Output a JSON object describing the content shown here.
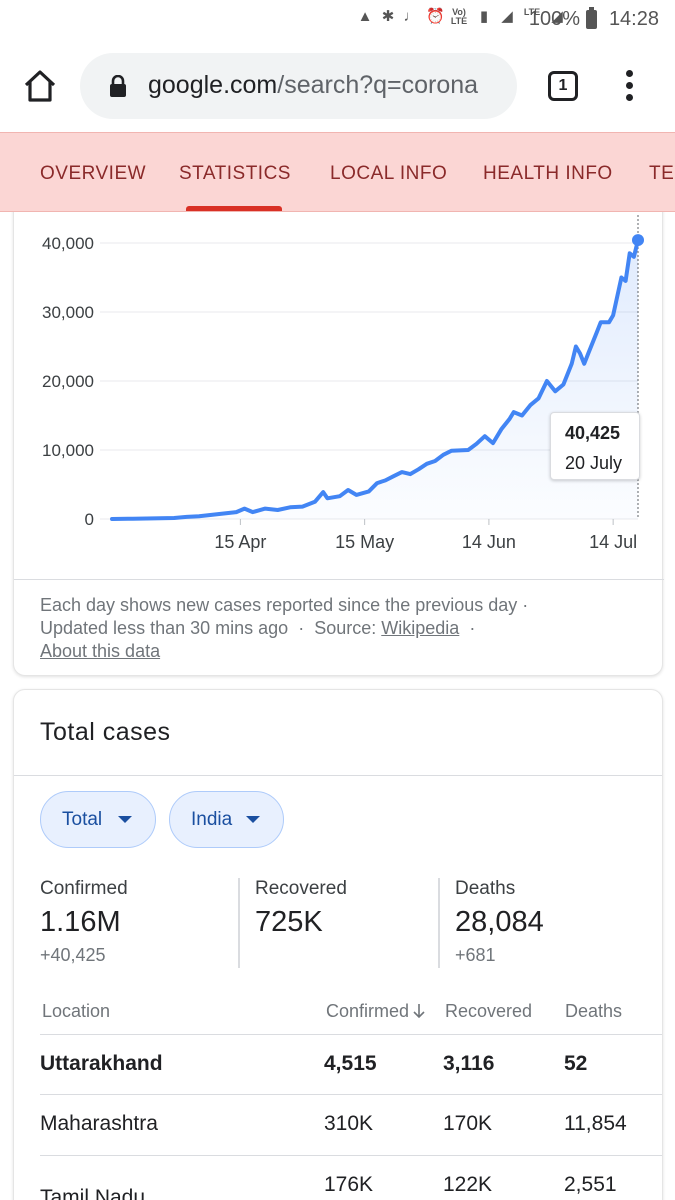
{
  "status_bar": {
    "icons": [
      "battery-saver-icon",
      "bluetooth-icon",
      "mute-icon",
      "alarm-icon",
      "volte-icon",
      "sim-icon",
      "signal-icon",
      "lte-icon",
      "signal-icon"
    ],
    "volte_label": "Vo) LTE",
    "lte_label": "LTE",
    "battery": "100%",
    "time": "14:28"
  },
  "browser": {
    "url_domain": "google.com",
    "url_rest": "/search?q=corona",
    "tab_count": "1"
  },
  "tabs": [
    {
      "label": "OVERVIEW",
      "active": false
    },
    {
      "label": "STATISTICS",
      "active": true
    },
    {
      "label": "LOCAL INFO",
      "active": false
    },
    {
      "label": "HEALTH INFO",
      "active": false
    },
    {
      "label": "TE",
      "active": false
    }
  ],
  "chart_data": {
    "type": "area",
    "title": "",
    "xlabel": "",
    "ylabel": "",
    "ylim": [
      0,
      40000
    ],
    "y_ticks": [
      {
        "value": 0,
        "label": "0"
      },
      {
        "value": 10000,
        "label": "10,000"
      },
      {
        "value": 20000,
        "label": "20,000"
      },
      {
        "value": 30000,
        "label": "30,000"
      },
      {
        "value": 40000,
        "label": "40,000"
      }
    ],
    "x_ticks": [
      {
        "date": "2020-04-15",
        "label": "15 Apr"
      },
      {
        "date": "2020-05-15",
        "label": "15 May"
      },
      {
        "date": "2020-06-14",
        "label": "14 Jun"
      },
      {
        "date": "2020-07-14",
        "label": "14 Jul"
      }
    ],
    "grid": true,
    "color": "#4285f4",
    "series": [
      {
        "values": [
          [
            "2020-03-15",
            0
          ],
          [
            "2020-03-20",
            50
          ],
          [
            "2020-03-25",
            80
          ],
          [
            "2020-03-30",
            150
          ],
          [
            "2020-04-02",
            300
          ],
          [
            "2020-04-05",
            400
          ],
          [
            "2020-04-08",
            600
          ],
          [
            "2020-04-11",
            800
          ],
          [
            "2020-04-14",
            1000
          ],
          [
            "2020-04-16",
            1500
          ],
          [
            "2020-04-18",
            1000
          ],
          [
            "2020-04-21",
            1500
          ],
          [
            "2020-04-24",
            1300
          ],
          [
            "2020-04-27",
            1700
          ],
          [
            "2020-04-30",
            1800
          ],
          [
            "2020-05-03",
            2500
          ],
          [
            "2020-05-05",
            3900
          ],
          [
            "2020-05-06",
            3000
          ],
          [
            "2020-05-09",
            3300
          ],
          [
            "2020-05-11",
            4200
          ],
          [
            "2020-05-13",
            3500
          ],
          [
            "2020-05-16",
            4000
          ],
          [
            "2020-05-18",
            5200
          ],
          [
            "2020-05-20",
            5600
          ],
          [
            "2020-05-22",
            6200
          ],
          [
            "2020-05-24",
            6800
          ],
          [
            "2020-05-26",
            6500
          ],
          [
            "2020-05-28",
            7200
          ],
          [
            "2020-05-30",
            8000
          ],
          [
            "2020-06-01",
            8400
          ],
          [
            "2020-06-03",
            9300
          ],
          [
            "2020-06-05",
            9900
          ],
          [
            "2020-06-09",
            10000
          ],
          [
            "2020-06-11",
            10900
          ],
          [
            "2020-06-13",
            12000
          ],
          [
            "2020-06-15",
            11000
          ],
          [
            "2020-06-17",
            13000
          ],
          [
            "2020-06-19",
            14500
          ],
          [
            "2020-06-20",
            15500
          ],
          [
            "2020-06-22",
            15000
          ],
          [
            "2020-06-24",
            16500
          ],
          [
            "2020-06-26",
            17500
          ],
          [
            "2020-06-28",
            20000
          ],
          [
            "2020-06-30",
            18500
          ],
          [
            "2020-07-02",
            19500
          ],
          [
            "2020-07-04",
            22500
          ],
          [
            "2020-07-05",
            25000
          ],
          [
            "2020-07-06",
            24000
          ],
          [
            "2020-07-07",
            22500
          ],
          [
            "2020-07-08",
            24000
          ],
          [
            "2020-07-10",
            27000
          ],
          [
            "2020-07-11",
            28500
          ],
          [
            "2020-07-13",
            28500
          ],
          [
            "2020-07-14",
            29500
          ],
          [
            "2020-07-16",
            35000
          ],
          [
            "2020-07-17",
            34500
          ],
          [
            "2020-07-18",
            38500
          ],
          [
            "2020-07-19",
            38000
          ],
          [
            "2020-07-20",
            40425
          ]
        ]
      }
    ],
    "tooltip": {
      "value": "40,425",
      "date": "20 July"
    }
  },
  "chart_note": {
    "line1": "Each day shows new cases reported since the previous day ·",
    "updated": "Updated less than 30 mins ago",
    "dot": "·",
    "source_label": "Source:",
    "source_link": "Wikipedia",
    "about_link": "About this data"
  },
  "totals": {
    "title": "Total cases",
    "chips": [
      {
        "label": "Total"
      },
      {
        "label": "India"
      }
    ],
    "stats": [
      {
        "label": "Confirmed",
        "value": "1.16M",
        "delta": "+40,425"
      },
      {
        "label": "Recovered",
        "value": "725K",
        "delta": ""
      },
      {
        "label": "Deaths",
        "value": "28,084",
        "delta": "+681"
      }
    ],
    "table": {
      "headers": [
        "Location",
        "Confirmed",
        "Recovered",
        "Deaths"
      ],
      "rows": [
        {
          "location": "Uttarakhand",
          "confirmed": "4,515",
          "recovered": "3,116",
          "deaths": "52",
          "bold": true
        },
        {
          "location": "Maharashtra",
          "confirmed": "310K",
          "recovered": "170K",
          "deaths": "11,854",
          "bold": false
        },
        {
          "location": "Tamil Nadu",
          "confirmed": "176K",
          "recovered": "122K",
          "deaths": "2,551",
          "bold": false
        }
      ]
    }
  }
}
